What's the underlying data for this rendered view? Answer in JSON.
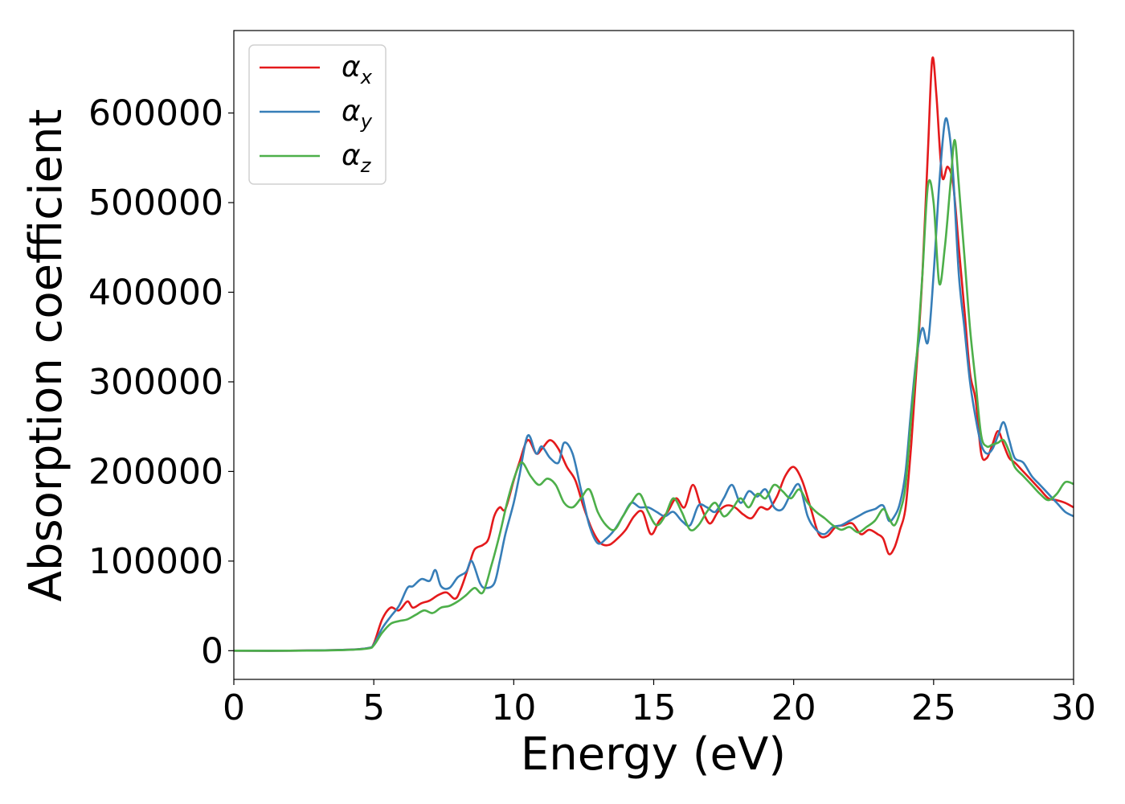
{
  "chart_data": {
    "type": "line",
    "title": "",
    "xlabel": "Energy (eV)",
    "ylabel": "Absorption coefficient",
    "xlim": [
      0,
      30
    ],
    "ylim": [
      -32000,
      692000
    ],
    "xticks": [
      0,
      5,
      10,
      15,
      20,
      25,
      30
    ],
    "yticks": [
      0,
      100000,
      200000,
      300000,
      400000,
      500000,
      600000
    ],
    "xtick_labels": [
      "0",
      "5",
      "10",
      "15",
      "20",
      "25",
      "30"
    ],
    "ytick_labels": [
      "0",
      "100000",
      "200000",
      "300000",
      "400000",
      "500000",
      "600000"
    ],
    "grid": false,
    "legend_position": "top-left",
    "series": [
      {
        "name": "αx",
        "base": "α",
        "sub": "x",
        "color": "#e41a1c",
        "x": [
          0,
          2,
          4,
          4.8,
          5.0,
          5.3,
          5.6,
          5.9,
          6.2,
          6.4,
          6.7,
          7.0,
          7.3,
          7.6,
          7.9,
          8.1,
          8.4,
          8.6,
          8.9,
          9.1,
          9.3,
          9.5,
          9.7,
          10.0,
          10.2,
          10.5,
          10.8,
          11.0,
          11.3,
          11.6,
          11.9,
          12.2,
          12.5,
          12.8,
          13.1,
          13.4,
          13.7,
          14.0,
          14.3,
          14.6,
          14.9,
          15.2,
          15.5,
          15.8,
          16.1,
          16.4,
          16.7,
          17.0,
          17.3,
          17.6,
          17.9,
          18.2,
          18.5,
          18.8,
          19.1,
          19.4,
          19.7,
          20.0,
          20.3,
          20.6,
          20.9,
          21.2,
          21.5,
          21.8,
          22.1,
          22.4,
          22.7,
          23.0,
          23.2,
          23.4,
          23.6,
          23.8,
          24.0,
          24.2,
          24.4,
          24.6,
          24.8,
          24.95,
          25.1,
          25.3,
          25.5,
          25.7,
          25.9,
          26.1,
          26.3,
          26.5,
          26.7,
          26.9,
          27.1,
          27.3,
          27.5,
          27.7,
          27.9,
          28.2,
          28.5,
          28.8,
          29.1,
          29.4,
          29.7,
          30.0
        ],
        "values": [
          0,
          0,
          1000,
          3000,
          8000,
          35000,
          48000,
          45000,
          55000,
          48000,
          53000,
          56000,
          62000,
          65000,
          58000,
          68000,
          95000,
          113000,
          118000,
          125000,
          150000,
          160000,
          158000,
          190000,
          210000,
          235000,
          220000,
          225000,
          235000,
          225000,
          205000,
          190000,
          160000,
          135000,
          120000,
          118000,
          125000,
          135000,
          150000,
          155000,
          130000,
          145000,
          155000,
          170000,
          160000,
          185000,
          160000,
          142000,
          155000,
          162000,
          160000,
          152000,
          148000,
          160000,
          158000,
          172000,
          195000,
          205000,
          190000,
          160000,
          130000,
          128000,
          138000,
          140000,
          142000,
          130000,
          135000,
          130000,
          125000,
          108000,
          115000,
          135000,
          160000,
          230000,
          320000,
          420000,
          560000,
          660000,
          620000,
          530000,
          540000,
          520000,
          450000,
          380000,
          310000,
          280000,
          220000,
          215000,
          230000,
          245000,
          230000,
          215000,
          210000,
          200000,
          190000,
          180000,
          170000,
          168000,
          165000,
          160000
        ]
      },
      {
        "name": "αy",
        "base": "α",
        "sub": "y",
        "color": "#377eb8",
        "x": [
          0,
          2,
          4,
          4.8,
          5.0,
          5.3,
          5.6,
          5.9,
          6.2,
          6.4,
          6.7,
          7.0,
          7.2,
          7.4,
          7.7,
          8.0,
          8.3,
          8.5,
          8.8,
          9.0,
          9.3,
          9.5,
          9.7,
          10.0,
          10.2,
          10.5,
          10.8,
          11.0,
          11.3,
          11.6,
          11.8,
          12.1,
          12.4,
          12.7,
          13.0,
          13.3,
          13.6,
          13.9,
          14.2,
          14.5,
          14.8,
          15.1,
          15.4,
          15.7,
          16.0,
          16.3,
          16.6,
          16.9,
          17.2,
          17.5,
          17.8,
          18.1,
          18.4,
          18.7,
          19.0,
          19.3,
          19.6,
          19.9,
          20.2,
          20.5,
          20.8,
          21.1,
          21.4,
          21.7,
          22.0,
          22.3,
          22.6,
          22.9,
          23.2,
          23.4,
          23.6,
          23.8,
          24.0,
          24.2,
          24.4,
          24.6,
          24.8,
          25.0,
          25.2,
          25.4,
          25.55,
          25.7,
          25.9,
          26.1,
          26.3,
          26.5,
          26.7,
          26.9,
          27.1,
          27.3,
          27.5,
          27.7,
          27.9,
          28.2,
          28.5,
          28.8,
          29.1,
          29.4,
          29.7,
          30.0
        ],
        "values": [
          0,
          0,
          1000,
          3000,
          7000,
          25000,
          38000,
          50000,
          70000,
          72000,
          80000,
          78000,
          90000,
          72000,
          70000,
          82000,
          88000,
          100000,
          75000,
          70000,
          75000,
          100000,
          130000,
          165000,
          195000,
          240000,
          220000,
          228000,
          215000,
          210000,
          232000,
          220000,
          180000,
          140000,
          120000,
          125000,
          135000,
          150000,
          165000,
          160000,
          160000,
          155000,
          150000,
          155000,
          145000,
          140000,
          162000,
          160000,
          155000,
          170000,
          185000,
          165000,
          178000,
          172000,
          180000,
          160000,
          158000,
          175000,
          185000,
          150000,
          135000,
          130000,
          138000,
          140000,
          145000,
          150000,
          155000,
          158000,
          162000,
          145000,
          150000,
          165000,
          200000,
          270000,
          330000,
          360000,
          345000,
          420000,
          520000,
          590000,
          580000,
          530000,
          420000,
          360000,
          300000,
          260000,
          230000,
          220000,
          225000,
          240000,
          255000,
          235000,
          215000,
          210000,
          195000,
          185000,
          175000,
          165000,
          155000,
          150000
        ]
      },
      {
        "name": "αz",
        "base": "α",
        "sub": "z",
        "color": "#4daf4a",
        "x": [
          0,
          2,
          4,
          4.8,
          5.0,
          5.3,
          5.6,
          5.9,
          6.2,
          6.5,
          6.8,
          7.1,
          7.4,
          7.7,
          8.0,
          8.3,
          8.6,
          8.9,
          9.2,
          9.5,
          9.8,
          10.1,
          10.3,
          10.6,
          10.9,
          11.2,
          11.5,
          11.8,
          12.1,
          12.4,
          12.7,
          13.0,
          13.3,
          13.6,
          13.9,
          14.2,
          14.5,
          14.8,
          15.1,
          15.4,
          15.7,
          16.0,
          16.3,
          16.6,
          16.9,
          17.2,
          17.5,
          17.8,
          18.1,
          18.4,
          18.7,
          19.0,
          19.3,
          19.6,
          19.9,
          20.2,
          20.5,
          20.8,
          21.1,
          21.4,
          21.7,
          22.0,
          22.3,
          22.6,
          22.9,
          23.2,
          23.4,
          23.6,
          23.8,
          24.0,
          24.2,
          24.4,
          24.6,
          24.8,
          25.0,
          25.2,
          25.4,
          25.6,
          25.75,
          25.9,
          26.1,
          26.3,
          26.5,
          26.7,
          26.9,
          27.1,
          27.3,
          27.5,
          27.7,
          27.9,
          28.2,
          28.5,
          28.8,
          29.1,
          29.4,
          29.7,
          30.0
        ],
        "values": [
          0,
          0,
          800,
          2500,
          6000,
          20000,
          30000,
          33000,
          35000,
          40000,
          45000,
          42000,
          48000,
          50000,
          55000,
          62000,
          70000,
          65000,
          95000,
          130000,
          170000,
          200000,
          210000,
          195000,
          185000,
          192000,
          185000,
          165000,
          160000,
          170000,
          180000,
          155000,
          140000,
          135000,
          150000,
          165000,
          175000,
          155000,
          140000,
          150000,
          170000,
          155000,
          135000,
          140000,
          155000,
          165000,
          150000,
          158000,
          170000,
          160000,
          175000,
          170000,
          185000,
          178000,
          170000,
          180000,
          165000,
          155000,
          148000,
          140000,
          135000,
          138000,
          132000,
          138000,
          145000,
          158000,
          148000,
          140000,
          155000,
          185000,
          260000,
          330000,
          420000,
          520000,
          500000,
          410000,
          450000,
          520000,
          570000,
          520000,
          440000,
          360000,
          300000,
          240000,
          228000,
          230000,
          232000,
          235000,
          222000,
          205000,
          195000,
          185000,
          175000,
          168000,
          175000,
          188000,
          186000
        ]
      }
    ]
  }
}
